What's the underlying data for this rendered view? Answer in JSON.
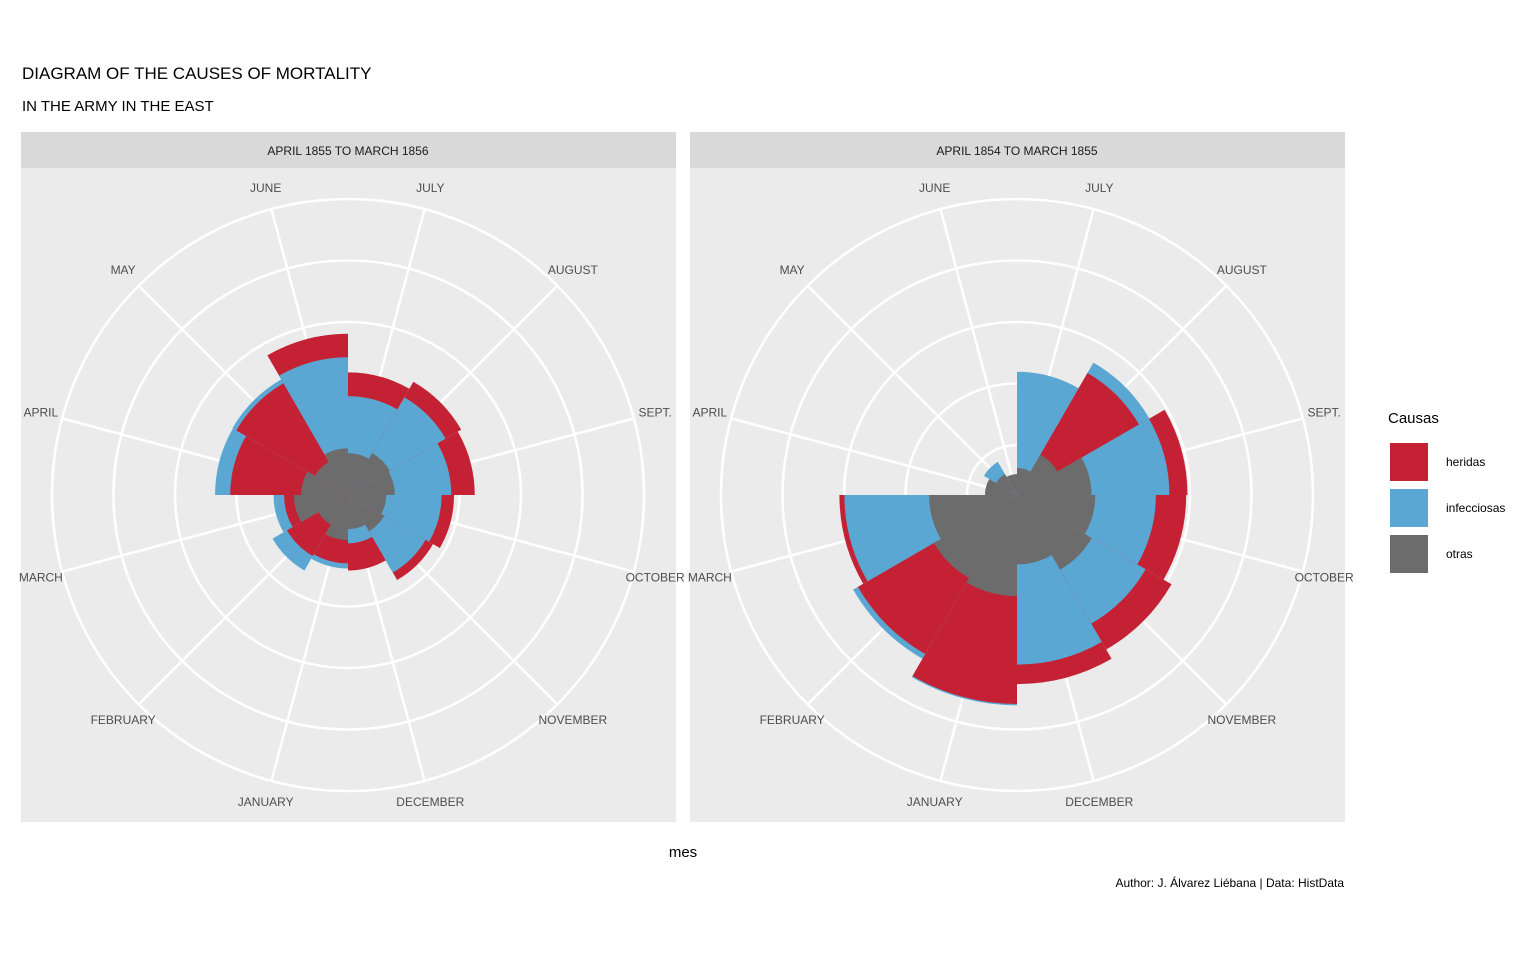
{
  "title": "DIAGRAM OF THE CAUSES OF MORTALITY",
  "subtitle": "IN THE ARMY IN THE EAST",
  "xlabel": "mes",
  "caption": "Author: J. Álvarez Liébana | Data: HistData",
  "legend": {
    "title": "Causas",
    "items": [
      {
        "label": "heridas",
        "color": "#C42234"
      },
      {
        "label": "infecciosas",
        "color": "#5BA7D3"
      },
      {
        "label": "otras",
        "color": "#6C6C6C"
      }
    ]
  },
  "chart_data": {
    "type": "polar-area",
    "grid_rings": 5,
    "months": [
      "JULY",
      "AUGUST",
      "SEPT.",
      "OCTOBER",
      "NOVEMBER",
      "DECEMBER",
      "JANUARY",
      "FEBRUARY",
      "MARCH",
      "APRIL",
      "MAY",
      "JUNE"
    ],
    "panels": [
      {
        "label": "APRIL 1855 TO MARCH 1856",
        "series": [
          {
            "name": "heridas",
            "values": [
              103,
              117,
              110,
              77,
              66,
              39,
              32,
              34,
              28,
              95,
              114,
              178
            ]
          },
          {
            "name": "infecciosas",
            "values": [
              67,
              87,
              73,
              60,
              55,
              16,
              37,
              52,
              38,
              121,
              122,
              130
            ]
          },
          {
            "name": "otras",
            "values": [
              12,
              16,
              15,
              10,
              12,
              8,
              14,
              8,
              20,
              15,
              10,
              15
            ]
          }
        ]
      },
      {
        "label": "APRIL 1854 TO MARCH 1855",
        "series": [
          {
            "name": "heridas",
            "values": [
              0,
              136,
              199,
              196,
              218,
              245,
              299,
              231,
              216,
              0,
              0,
              0
            ]
          },
          {
            "name": "infecciosas",
            "values": [
              104,
              160,
              159,
              132,
              151,
              197,
              303,
              245,
              204,
              7,
              10,
              0
            ]
          },
          {
            "name": "otras",
            "values": [
              5,
              15,
              38,
              42,
              51,
              33,
              70,
              63,
              53,
              7,
              4,
              3
            ]
          }
        ]
      }
    ]
  }
}
